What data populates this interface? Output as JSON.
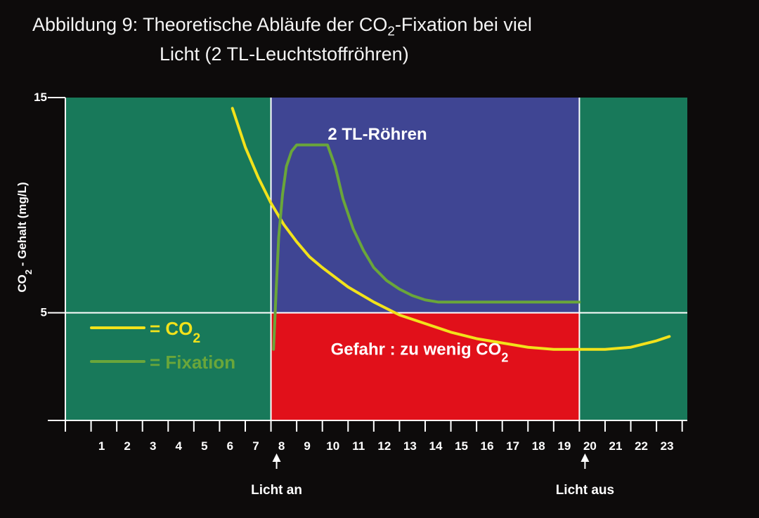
{
  "title": {
    "line1_pre": "Abbildung 9: Theoretische Abläufe der CO",
    "line1_sub": "2",
    "line1_post": "-Fixation bei viel",
    "line2": "Licht (2 TL-Leuchtstoffröhren)"
  },
  "colors": {
    "background": "#0d0b0b",
    "dark_period": "#18795a",
    "light_zone": "#3f4593",
    "danger_zone": "#e1101a",
    "co2_line": "#f2e21b",
    "fixation_line": "#6aa63a"
  },
  "chart_data": {
    "type": "line",
    "xlabel": "",
    "ylabel": "CO2 - Gehalt (mg/L)",
    "ylabel_main": "CO",
    "ylabel_sub": "2",
    "ylabel_rest": " - Gehalt (mg/L)",
    "xlim": [
      0,
      24.2
    ],
    "ylim": [
      0,
      15
    ],
    "x_ticks": [
      1,
      2,
      3,
      4,
      5,
      6,
      7,
      8,
      9,
      10,
      11,
      12,
      13,
      14,
      15,
      16,
      17,
      18,
      19,
      20,
      21,
      22,
      23
    ],
    "y_ticks": [
      5,
      15
    ],
    "grid": "horizontal line at 5, vertical lines at 8 and 20",
    "regions": [
      {
        "name": "dark-left",
        "x": [
          0,
          8
        ],
        "y": [
          0,
          15
        ],
        "color": "#18795a"
      },
      {
        "name": "light",
        "x": [
          8,
          20
        ],
        "y": [
          5,
          15
        ],
        "color": "#3f4593",
        "label": "2 TL-Röhren"
      },
      {
        "name": "danger",
        "x": [
          8,
          20
        ],
        "y": [
          0,
          5
        ],
        "color": "#e1101a",
        "label_main": "Gefahr : zu wenig CO",
        "label_sub": "2"
      },
      {
        "name": "dark-right",
        "x": [
          20,
          24.2
        ],
        "y": [
          0,
          15
        ],
        "color": "#18795a"
      }
    ],
    "annotations": [
      {
        "x": 8,
        "text": "Licht an"
      },
      {
        "x": 20,
        "text": "Licht aus"
      }
    ],
    "legend": {
      "placement": "left",
      "entries": [
        {
          "main": "= CO",
          "sub": "2",
          "series": "co2",
          "color": "#f2e21b"
        },
        {
          "main": "= Fixation",
          "sub": "",
          "series": "fixation",
          "color": "#6aa63a"
        }
      ]
    },
    "series": [
      {
        "key": "co2",
        "color": "#f2e21b",
        "x": [
          6.5,
          7,
          7.5,
          8,
          8.5,
          9,
          9.5,
          10,
          11,
          12,
          13,
          14,
          15,
          16,
          17,
          18,
          19,
          20,
          21,
          22,
          23,
          23.5
        ],
        "y": [
          14.5,
          12.7,
          11.3,
          10.1,
          9.1,
          8.3,
          7.6,
          7.1,
          6.2,
          5.5,
          4.9,
          4.5,
          4.1,
          3.8,
          3.6,
          3.4,
          3.3,
          3.3,
          3.3,
          3.4,
          3.7,
          3.9
        ]
      },
      {
        "key": "fixation",
        "color": "#6aa63a",
        "x": [
          8.1,
          8.2,
          8.3,
          8.45,
          8.6,
          8.8,
          9.0,
          10.2,
          10.5,
          10.8,
          11.2,
          11.6,
          12.0,
          12.5,
          13.0,
          13.5,
          14.0,
          14.5,
          20.0
        ],
        "y": [
          3.3,
          6.0,
          8.5,
          10.5,
          11.8,
          12.5,
          12.8,
          12.8,
          11.8,
          10.3,
          8.9,
          7.9,
          7.1,
          6.5,
          6.1,
          5.8,
          5.6,
          5.5,
          5.5
        ]
      }
    ]
  }
}
